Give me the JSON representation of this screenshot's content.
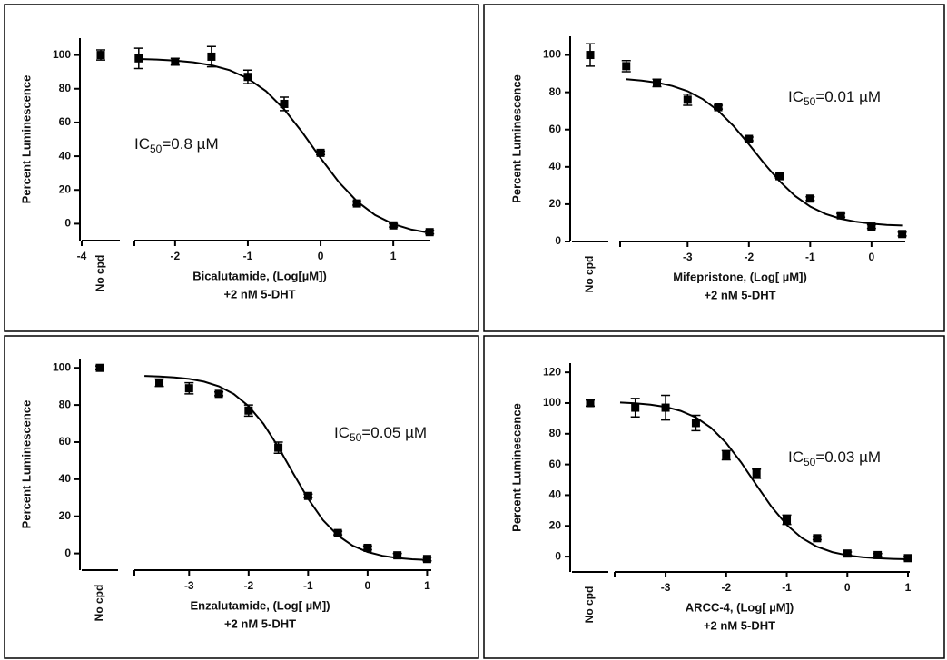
{
  "chart_data": [
    {
      "type": "dose-response",
      "ylabel": "Percent Luminescence",
      "xlabel": [
        "Bicalutamide, (Log[µM])",
        "+2 nM 5-DHT"
      ],
      "annotation": [
        "IC",
        "50",
        "=0.8 µM"
      ],
      "ylim": [
        -10,
        110
      ],
      "yticks": [
        0,
        20,
        40,
        60,
        80,
        100
      ],
      "xlim": [
        -2.56,
        1.51
      ],
      "xticks": [
        -2,
        -1,
        0,
        1
      ],
      "break_xlim": [
        -4,
        -3.5
      ],
      "break_xticks": [
        -4
      ],
      "color": "#000000",
      "control": {
        "label": "No cpd",
        "value": 100,
        "error": 3
      },
      "x": [
        -2.5,
        -2,
        -1.5,
        -1,
        -0.5,
        0,
        0.5,
        1,
        1.5
      ],
      "values": [
        98,
        96,
        99,
        87,
        71,
        42,
        12,
        -1,
        -5
      ],
      "errors": [
        6,
        2,
        6,
        4,
        4,
        1,
        1,
        1,
        1
      ],
      "fit": {
        "x": [
          -2.5,
          -2.25,
          -2,
          -1.75,
          -1.5,
          -1.25,
          -1,
          -0.75,
          -0.5,
          -0.25,
          0,
          0.25,
          0.5,
          0.75,
          1,
          1.25,
          1.5
        ],
        "values": [
          97.6,
          97.3,
          96.7,
          95.7,
          93.9,
          91.0,
          86.1,
          78.6,
          67.8,
          54.1,
          38.9,
          24.7,
          13.3,
          5.1,
          -0.2,
          -3.5,
          -5.4
        ]
      }
    },
    {
      "type": "dose-response",
      "ylabel": "Percent Luminescence",
      "xlabel": [
        "Mifepristone, (Log[ µM])",
        "+2 nM 5-DHT"
      ],
      "annotation": [
        "IC",
        "50",
        "=0.01 µM"
      ],
      "ylim": [
        0,
        110
      ],
      "yticks": [
        0,
        20,
        40,
        60,
        80,
        100
      ],
      "xlim": [
        -4.1,
        0.55
      ],
      "xticks": [
        -3,
        -2,
        -1,
        0
      ],
      "color": "#000000",
      "control": {
        "label": "No cpd",
        "value": 100,
        "error": 6
      },
      "x": [
        -4,
        -3.5,
        -3,
        -2.5,
        -2,
        -1.5,
        -1,
        -0.5,
        0,
        0.5
      ],
      "values": [
        94,
        85,
        76,
        72,
        55,
        35,
        23,
        14,
        8,
        4
      ],
      "errors": [
        3,
        2,
        3,
        1,
        1,
        1,
        1,
        1,
        1,
        1
      ],
      "fit": {
        "x": [
          -4,
          -3.75,
          -3.5,
          -3.25,
          -3,
          -2.75,
          -2.5,
          -2.25,
          -2,
          -1.75,
          -1.5,
          -1.25,
          -1,
          -0.75,
          -0.5,
          -0.25,
          0,
          0.25,
          0.5
        ],
        "values": [
          86.98,
          86.31,
          85.2,
          83.4,
          80.59,
          76.26,
          70.11,
          61.91,
          52.13,
          41.82,
          32.31,
          24.49,
          18.72,
          14.76,
          12.17,
          10.54,
          9.53,
          8.92,
          8.55
        ]
      }
    },
    {
      "type": "dose-response",
      "ylabel": "Percent Luminescence",
      "xlabel": [
        "Enzalutamide, (Log[ µM])",
        "+2 nM 5-DHT"
      ],
      "annotation": [
        "IC",
        "50",
        "=0.05 µM"
      ],
      "ylim": [
        -9,
        105
      ],
      "yticks": [
        0,
        20,
        40,
        60,
        80,
        100
      ],
      "xlim": [
        -3.92,
        1.07
      ],
      "xticks": [
        -3,
        -2,
        -1,
        0,
        1
      ],
      "color": "#000000",
      "control": {
        "label": "No cpd",
        "value": 100,
        "error": 1
      },
      "x": [
        -3.5,
        -3,
        -2.5,
        -2,
        -1.5,
        -1,
        -0.5,
        0,
        0.5,
        1
      ],
      "values": [
        92,
        89,
        86,
        77,
        57,
        31,
        11,
        3,
        -1,
        -3
      ],
      "errors": [
        2,
        3,
        1,
        3,
        3,
        1,
        1,
        1,
        1,
        1
      ],
      "fit": {
        "x": [
          -3.75,
          -3.5,
          -3.25,
          -3,
          -2.75,
          -2.5,
          -2.25,
          -2,
          -1.75,
          -1.5,
          -1.25,
          -1,
          -0.75,
          -0.5,
          -0.25,
          0,
          0.25,
          0.5,
          0.75,
          1
        ],
        "values": [
          95.65,
          95.37,
          94.89,
          94.04,
          92.57,
          90.07,
          85.93,
          79.36,
          69.8,
          57.31,
          43.13,
          29.39,
          17.98,
          9.68,
          4.18,
          0.77,
          -1.26,
          -2.44,
          -3.12,
          -3.5
        ]
      }
    },
    {
      "type": "dose-response",
      "ylabel": "Percent Luminescence",
      "xlabel": [
        "ARCC-4, (Log[ µM])",
        "+2 nM 5-DHT"
      ],
      "annotation": [
        "IC",
        "50",
        "=0.03 µM"
      ],
      "ylim": [
        -10,
        126
      ],
      "yticks": [
        0,
        20,
        40,
        60,
        80,
        100,
        120
      ],
      "xlim": [
        -3.84,
        1.03
      ],
      "xticks": [
        -3,
        -2,
        -1,
        0,
        1
      ],
      "color": "#000000",
      "control": {
        "label": "No cpd",
        "value": 100,
        "error": 2
      },
      "x": [
        -3.5,
        -3,
        -2.5,
        -2,
        -1.5,
        -1,
        -0.5,
        0,
        0.5,
        1
      ],
      "values": [
        97,
        97,
        87,
        66,
        54,
        24,
        12,
        2,
        1,
        -1
      ],
      "errors": [
        6,
        8,
        5,
        3,
        3,
        3,
        1,
        1,
        1,
        1
      ],
      "fit": {
        "x": [
          -3.75,
          -3.5,
          -3.25,
          -3,
          -2.75,
          -2.5,
          -2.25,
          -2,
          -1.75,
          -1.5,
          -1.25,
          -1,
          -0.75,
          -0.5,
          -0.25,
          0,
          0.25,
          0.5,
          0.75,
          1
        ],
        "values": [
          100.36,
          99.86,
          98.98,
          97.47,
          94.9,
          90.63,
          83.87,
          74.01,
          61.15,
          46.54,
          32.39,
          20.64,
          12.09,
          6.43,
          2.92,
          0.82,
          -0.39,
          -1.09,
          -1.49,
          -1.71
        ]
      }
    }
  ]
}
